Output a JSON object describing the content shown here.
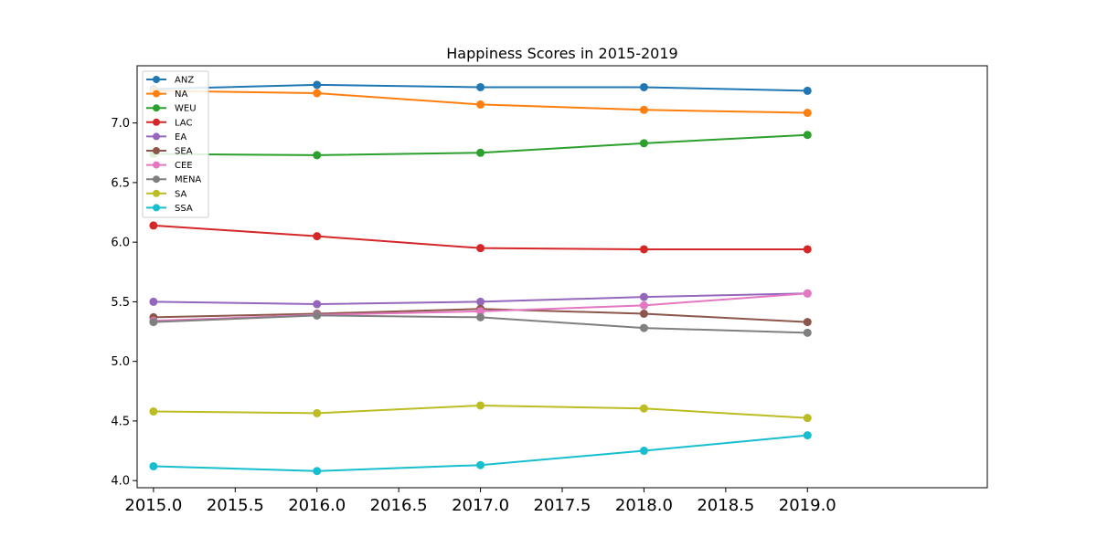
{
  "chart_data": {
    "type": "line",
    "title": "Happiness Scores in 2015-2019",
    "xlabel": "",
    "ylabel": "",
    "x": [
      2015,
      2016,
      2017,
      2018,
      2019
    ],
    "xlim": [
      2014.9,
      2020.1
    ],
    "ylim": [
      3.94,
      7.48
    ],
    "x_ticks": [
      "2015.0",
      "2015.5",
      "2016.0",
      "2016.5",
      "2017.0",
      "2017.5",
      "2018.0",
      "2018.5",
      "2019.0"
    ],
    "x_tick_values": [
      2015.0,
      2015.5,
      2016.0,
      2016.5,
      2017.0,
      2017.5,
      2018.0,
      2018.5,
      2019.0
    ],
    "y_ticks": [
      "4.0",
      "4.5",
      "5.0",
      "5.5",
      "6.0",
      "6.5",
      "7.0"
    ],
    "y_tick_values": [
      4.0,
      4.5,
      5.0,
      5.5,
      6.0,
      6.5,
      7.0
    ],
    "grid": false,
    "legend_position": "top-left",
    "series": [
      {
        "name": "ANZ",
        "color": "#1f77b4",
        "values": [
          7.285,
          7.32,
          7.3,
          7.3,
          7.27
        ]
      },
      {
        "name": "NA",
        "color": "#ff7f0e",
        "values": [
          7.27,
          7.25,
          7.155,
          7.11,
          7.085
        ]
      },
      {
        "name": "WEU",
        "color": "#2ca02c",
        "values": [
          6.74,
          6.73,
          6.75,
          6.83,
          6.9
        ]
      },
      {
        "name": "LAC",
        "color": "#d62728",
        "values": [
          6.14,
          6.05,
          5.95,
          5.94,
          5.94
        ]
      },
      {
        "name": "EA",
        "color": "#9467bd",
        "values": [
          5.5,
          5.48,
          5.5,
          5.54,
          5.57
        ]
      },
      {
        "name": "SEA",
        "color": "#8c564b",
        "values": [
          5.37,
          5.4,
          5.44,
          5.4,
          5.33
        ]
      },
      {
        "name": "CEE",
        "color": "#e377c2",
        "values": [
          5.34,
          5.39,
          5.42,
          5.47,
          5.57
        ]
      },
      {
        "name": "MENA",
        "color": "#7f7f7f",
        "values": [
          5.33,
          5.385,
          5.37,
          5.28,
          5.24
        ]
      },
      {
        "name": "SA",
        "color": "#bcbd22",
        "values": [
          4.58,
          4.565,
          4.63,
          4.605,
          4.525
        ]
      },
      {
        "name": "SSA",
        "color": "#17becf",
        "values": [
          4.12,
          4.08,
          4.13,
          4.25,
          4.38
        ]
      }
    ]
  }
}
